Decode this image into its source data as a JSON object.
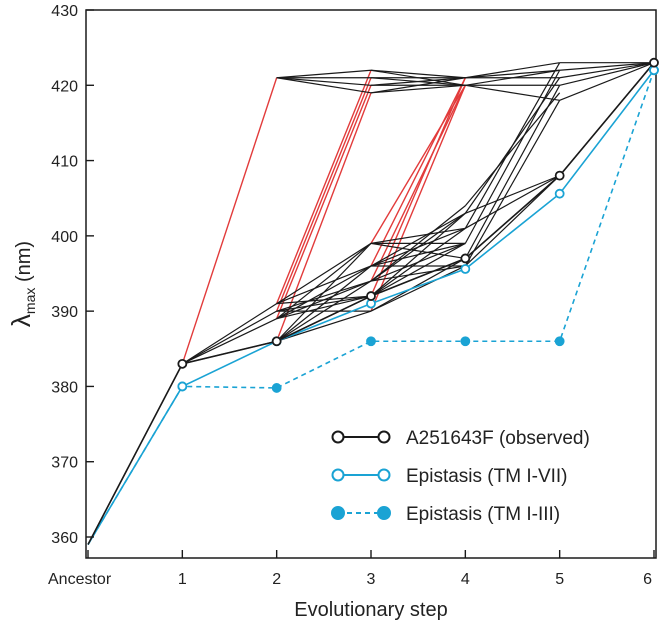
{
  "chart_data": {
    "type": "line",
    "xlabel": "Evolutionary step",
    "ylabel_main": "λ",
    "ylabel_sub": "max",
    "ylabel_unit": " (nm)",
    "ylim": [
      358,
      430
    ],
    "yticks": [
      360,
      370,
      380,
      390,
      400,
      410,
      420,
      430
    ],
    "xlim": [
      0,
      6
    ],
    "xticks": [
      {
        "x": 0,
        "label": "Ancestor"
      },
      {
        "x": 1,
        "label": "1"
      },
      {
        "x": 2,
        "label": "2"
      },
      {
        "x": 3,
        "label": "3"
      },
      {
        "x": 4,
        "label": "4"
      },
      {
        "x": 5,
        "label": "5"
      },
      {
        "x": 6,
        "label": "6"
      }
    ],
    "grid": false,
    "legend_position": "bottom-right",
    "colors": {
      "observed": "#1a1a1a",
      "epistasis": "#1aa3d4",
      "red_path": "#e23b3b"
    },
    "legend": [
      {
        "key": "observed",
        "label": "A251643F (observed)",
        "style": "solid",
        "marker": "open"
      },
      {
        "key": "tm17",
        "label": "Epistasis (TM I-VII)",
        "style": "solid",
        "marker": "open"
      },
      {
        "key": "tm13",
        "label": "Epistasis (TM I-III)",
        "style": "dashed",
        "marker": "filled"
      }
    ],
    "series": [
      {
        "key": "observed",
        "points": [
          [
            0,
            359
          ],
          [
            1,
            383
          ],
          [
            2,
            386
          ],
          [
            3,
            392
          ],
          [
            4,
            397
          ],
          [
            5,
            408
          ],
          [
            6,
            423
          ]
        ]
      },
      {
        "key": "tm17",
        "points": [
          [
            0,
            359
          ],
          [
            1,
            380
          ],
          [
            2,
            386
          ],
          [
            3,
            391
          ],
          [
            4,
            395.6
          ],
          [
            5,
            405.6
          ],
          [
            6,
            422
          ]
        ]
      },
      {
        "key": "tm13",
        "points": [
          [
            0,
            359
          ],
          [
            1,
            380
          ],
          [
            2,
            379.8
          ],
          [
            3,
            386
          ],
          [
            4,
            386
          ],
          [
            5,
            386
          ],
          [
            6,
            422
          ]
        ]
      }
    ],
    "path_network_black": [
      [
        [
          0,
          359
        ],
        [
          1,
          383
        ]
      ],
      [
        [
          1,
          383
        ],
        [
          2,
          386
        ]
      ],
      [
        [
          1,
          383
        ],
        [
          2,
          389
        ]
      ],
      [
        [
          1,
          383
        ],
        [
          2,
          390
        ]
      ],
      [
        [
          1,
          383
        ],
        [
          2,
          391
        ]
      ],
      [
        [
          2,
          386
        ],
        [
          3,
          390
        ]
      ],
      [
        [
          2,
          386
        ],
        [
          3,
          392
        ]
      ],
      [
        [
          2,
          386
        ],
        [
          3,
          394
        ]
      ],
      [
        [
          2,
          386
        ],
        [
          3,
          396
        ]
      ],
      [
        [
          2,
          386
        ],
        [
          3,
          399
        ]
      ],
      [
        [
          2,
          389
        ],
        [
          3,
          392
        ]
      ],
      [
        [
          2,
          389
        ],
        [
          3,
          394
        ]
      ],
      [
        [
          2,
          389
        ],
        [
          3,
          396
        ]
      ],
      [
        [
          2,
          389
        ],
        [
          3,
          399
        ]
      ],
      [
        [
          2,
          390
        ],
        [
          3,
          390
        ]
      ],
      [
        [
          2,
          390
        ],
        [
          3,
          392
        ]
      ],
      [
        [
          2,
          390
        ],
        [
          3,
          394
        ]
      ],
      [
        [
          2,
          391
        ],
        [
          3,
          392
        ]
      ],
      [
        [
          2,
          391
        ],
        [
          3,
          396
        ]
      ],
      [
        [
          2,
          391
        ],
        [
          3,
          399
        ]
      ],
      [
        [
          3,
          390
        ],
        [
          4,
          396
        ]
      ],
      [
        [
          3,
          390
        ],
        [
          4,
          397
        ]
      ],
      [
        [
          3,
          392
        ],
        [
          4,
          397
        ]
      ],
      [
        [
          3,
          392
        ],
        [
          4,
          399
        ]
      ],
      [
        [
          3,
          392
        ],
        [
          4,
          401
        ]
      ],
      [
        [
          3,
          392
        ],
        [
          4,
          403
        ]
      ],
      [
        [
          3,
          394
        ],
        [
          4,
          396
        ]
      ],
      [
        [
          3,
          394
        ],
        [
          4,
          399
        ]
      ],
      [
        [
          3,
          394
        ],
        [
          4,
          403
        ]
      ],
      [
        [
          3,
          394
        ],
        [
          4,
          404
        ]
      ],
      [
        [
          3,
          396
        ],
        [
          4,
          396
        ]
      ],
      [
        [
          3,
          396
        ],
        [
          4,
          399
        ]
      ],
      [
        [
          3,
          396
        ],
        [
          4,
          401
        ]
      ],
      [
        [
          3,
          396
        ],
        [
          4,
          403
        ]
      ],
      [
        [
          3,
          399
        ],
        [
          4,
          399
        ]
      ],
      [
        [
          3,
          399
        ],
        [
          4,
          397
        ]
      ],
      [
        [
          3,
          399
        ],
        [
          4,
          401
        ]
      ],
      [
        [
          4,
          396
        ],
        [
          5,
          408
        ]
      ],
      [
        [
          4,
          397
        ],
        [
          5,
          408
        ]
      ],
      [
        [
          4,
          401
        ],
        [
          5,
          408
        ]
      ],
      [
        [
          4,
          403
        ],
        [
          5,
          408
        ]
      ],
      [
        [
          4,
          396
        ],
        [
          5,
          418
        ]
      ],
      [
        [
          4,
          397
        ],
        [
          5,
          420
        ]
      ],
      [
        [
          4,
          399
        ],
        [
          5,
          422
        ]
      ],
      [
        [
          4,
          401
        ],
        [
          5,
          423
        ]
      ],
      [
        [
          4,
          403
        ],
        [
          5,
          421
        ]
      ],
      [
        [
          4,
          404
        ],
        [
          5,
          419
        ]
      ],
      [
        [
          2,
          421
        ],
        [
          3,
          419
        ]
      ],
      [
        [
          2,
          421
        ],
        [
          3,
          420
        ]
      ],
      [
        [
          2,
          421
        ],
        [
          3,
          421
        ]
      ],
      [
        [
          2,
          421
        ],
        [
          3,
          422
        ]
      ],
      [
        [
          3,
          419
        ],
        [
          4,
          420
        ]
      ],
      [
        [
          3,
          419
        ],
        [
          4,
          421
        ]
      ],
      [
        [
          3,
          420
        ],
        [
          4,
          420
        ]
      ],
      [
        [
          3,
          420
        ],
        [
          4,
          421
        ]
      ],
      [
        [
          3,
          421
        ],
        [
          4,
          420
        ]
      ],
      [
        [
          3,
          421
        ],
        [
          4,
          421
        ]
      ],
      [
        [
          3,
          422
        ],
        [
          4,
          420
        ]
      ],
      [
        [
          3,
          422
        ],
        [
          4,
          421
        ]
      ],
      [
        [
          4,
          420
        ],
        [
          5,
          422
        ]
      ],
      [
        [
          4,
          420
        ],
        [
          5,
          420
        ]
      ],
      [
        [
          4,
          420
        ],
        [
          5,
          418
        ]
      ],
      [
        [
          4,
          421
        ],
        [
          5,
          423
        ]
      ],
      [
        [
          4,
          421
        ],
        [
          5,
          421
        ]
      ],
      [
        [
          4,
          421
        ],
        [
          5,
          422
        ]
      ],
      [
        [
          5,
          408
        ],
        [
          6,
          423
        ]
      ],
      [
        [
          5,
          418
        ],
        [
          6,
          423
        ]
      ],
      [
        [
          5,
          420
        ],
        [
          6,
          423
        ]
      ],
      [
        [
          5,
          421
        ],
        [
          6,
          423
        ]
      ],
      [
        [
          5,
          422
        ],
        [
          6,
          423
        ]
      ],
      [
        [
          5,
          423
        ],
        [
          6,
          423
        ]
      ]
    ],
    "path_network_red": [
      [
        [
          1,
          383
        ],
        [
          2,
          421
        ]
      ],
      [
        [
          2,
          386
        ],
        [
          3,
          419
        ]
      ],
      [
        [
          2,
          389
        ],
        [
          3,
          420
        ]
      ],
      [
        [
          2,
          390
        ],
        [
          3,
          421
        ]
      ],
      [
        [
          2,
          391
        ],
        [
          3,
          422
        ]
      ],
      [
        [
          3,
          390
        ],
        [
          4,
          420
        ]
      ],
      [
        [
          3,
          392
        ],
        [
          4,
          421
        ]
      ],
      [
        [
          3,
          394
        ],
        [
          4,
          420
        ]
      ],
      [
        [
          3,
          396
        ],
        [
          4,
          421
        ]
      ],
      [
        [
          3,
          399
        ],
        [
          4,
          420
        ]
      ]
    ]
  }
}
